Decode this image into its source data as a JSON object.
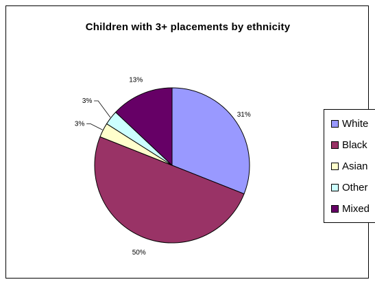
{
  "chart_data": {
    "type": "pie",
    "title": "Children with 3+ placements by ethnicity",
    "slices": [
      {
        "name": "White",
        "value": 31,
        "label": "31%",
        "color": "#9999ff"
      },
      {
        "name": "Black",
        "value": 50,
        "label": "50%",
        "color": "#993366"
      },
      {
        "name": "Asian",
        "value": 3,
        "label": "3%",
        "color": "#ffffcc"
      },
      {
        "name": "Other",
        "value": 3,
        "label": "3%",
        "color": "#ccffff"
      },
      {
        "name": "Mixed",
        "value": 13,
        "label": "13%",
        "color": "#660066"
      }
    ],
    "legend_position": "right",
    "start_angle": "12 o'clock",
    "direction": "clockwise"
  }
}
